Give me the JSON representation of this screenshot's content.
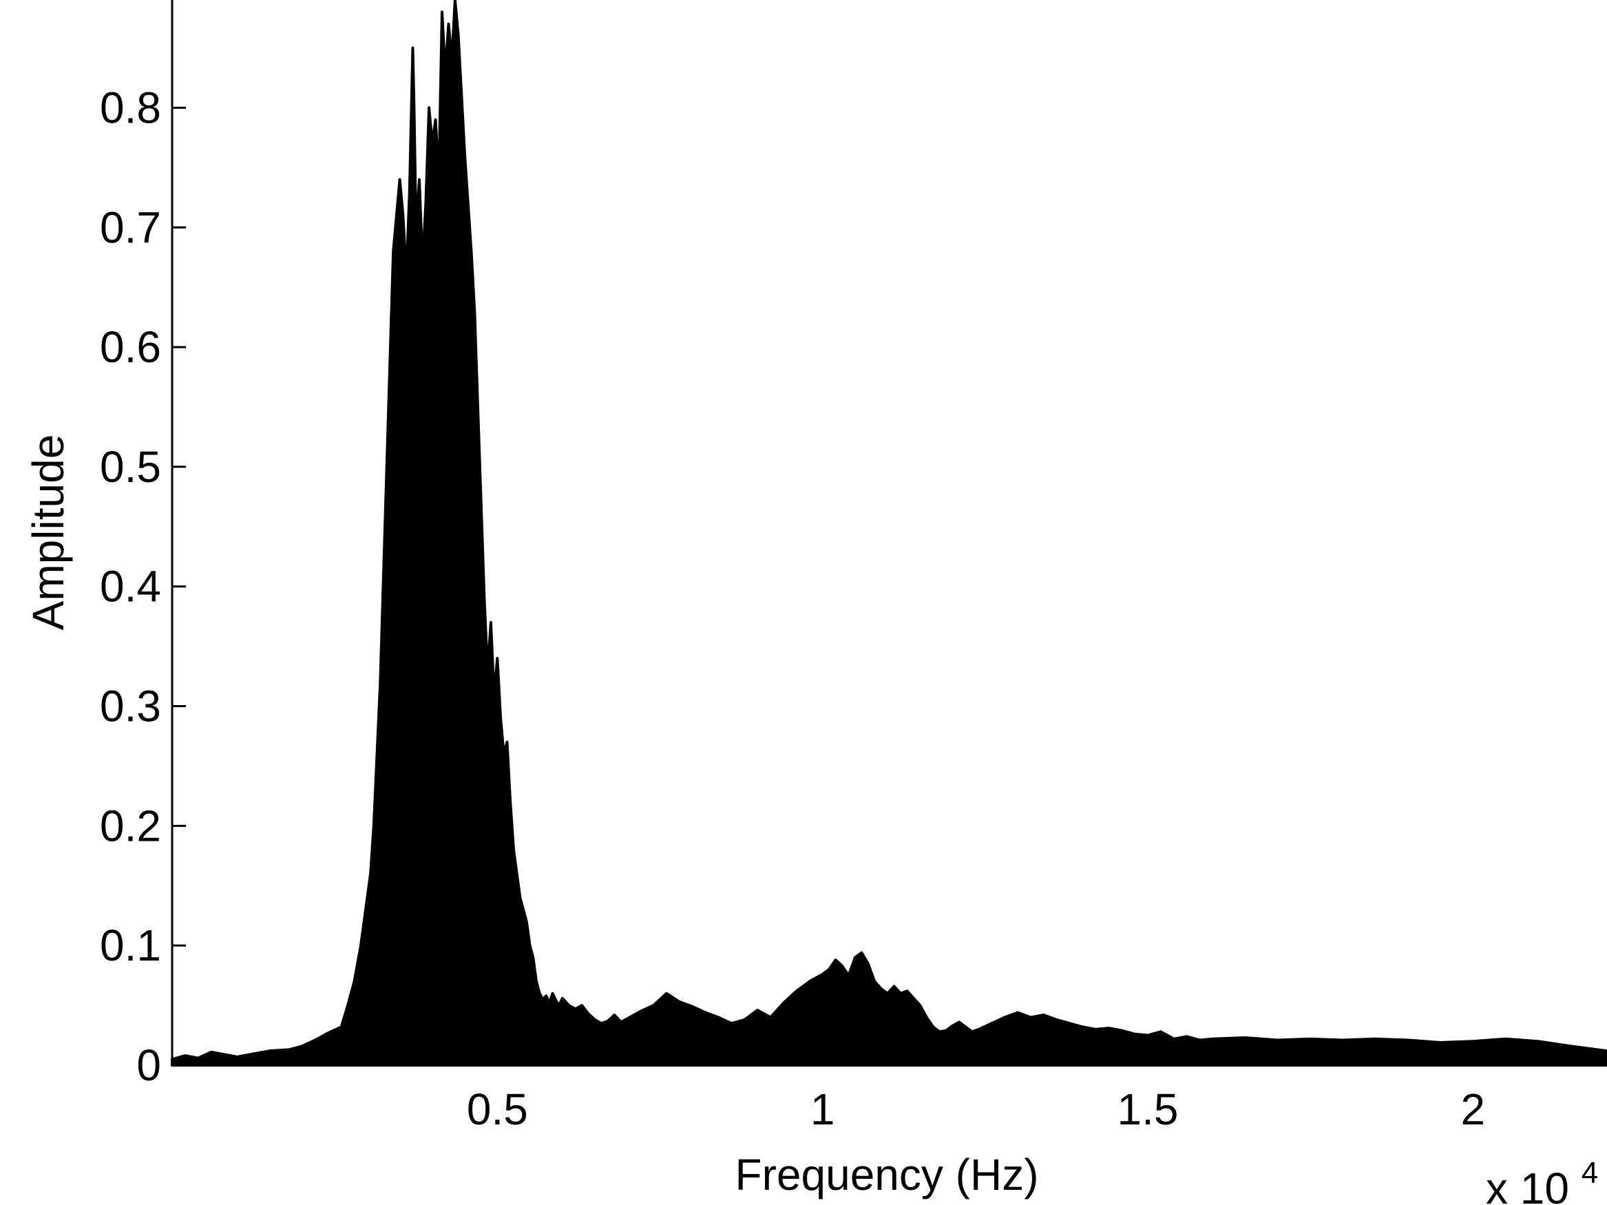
{
  "chart_data": {
    "type": "area",
    "xlabel": "Frequency (Hz)",
    "ylabel": "Amplitude",
    "x_multiplier_label": "x 10",
    "x_multiplier_exponent": "4",
    "xlim": [
      0,
      22050
    ],
    "ylim": [
      0,
      0.89
    ],
    "x_ticks": [
      {
        "value": 5000,
        "label": "0.5"
      },
      {
        "value": 10000,
        "label": "1"
      },
      {
        "value": 15000,
        "label": "1.5"
      },
      {
        "value": 20000,
        "label": "2"
      }
    ],
    "y_ticks": [
      {
        "value": 0,
        "label": "0"
      },
      {
        "value": 0.1,
        "label": "0.1"
      },
      {
        "value": 0.2,
        "label": "0.2"
      },
      {
        "value": 0.3,
        "label": "0.3"
      },
      {
        "value": 0.4,
        "label": "0.4"
      },
      {
        "value": 0.5,
        "label": "0.5"
      },
      {
        "value": 0.6,
        "label": "0.6"
      },
      {
        "value": 0.7,
        "label": "0.7"
      },
      {
        "value": 0.8,
        "label": "0.8"
      }
    ],
    "grid": false,
    "fill_color": "#000000",
    "series": [
      {
        "x": [
          0,
          200,
          400,
          600,
          800,
          1000,
          1200,
          1500,
          1800,
          2000,
          2200,
          2400,
          2600,
          2700,
          2800,
          2900,
          3000,
          3050,
          3100,
          3200,
          3300,
          3400,
          3500,
          3550,
          3600,
          3650,
          3700,
          3720,
          3750,
          3800,
          3850,
          3900,
          3950,
          4000,
          4050,
          4100,
          4150,
          4200,
          4250,
          4300,
          4350,
          4400,
          4450,
          4500,
          4550,
          4600,
          4650,
          4700,
          4750,
          4800,
          4850,
          4900,
          4950,
          5000,
          5050,
          5100,
          5150,
          5200,
          5250,
          5300,
          5350,
          5400,
          5450,
          5500,
          5550,
          5600,
          5650,
          5700,
          5750,
          5800,
          5850,
          5900,
          5950,
          6000,
          6100,
          6200,
          6300,
          6400,
          6500,
          6600,
          6700,
          6800,
          6900,
          7000,
          7200,
          7400,
          7600,
          7800,
          8000,
          8200,
          8400,
          8600,
          8800,
          9000,
          9200,
          9400,
          9600,
          9800,
          10000,
          10100,
          10200,
          10300,
          10400,
          10500,
          10600,
          10700,
          10800,
          10900,
          11000,
          11100,
          11200,
          11300,
          11400,
          11500,
          11600,
          11700,
          11800,
          11900,
          12000,
          12100,
          12200,
          12300,
          12400,
          12600,
          12800,
          13000,
          13200,
          13400,
          13600,
          13800,
          14000,
          14200,
          14400,
          14600,
          14800,
          15000,
          15200,
          15400,
          15600,
          15800,
          16000,
          16500,
          17000,
          17500,
          18000,
          18500,
          19000,
          19500,
          20000,
          20500,
          21000,
          21500,
          22050
        ],
        "y": [
          0.005,
          0.008,
          0.006,
          0.011,
          0.009,
          0.007,
          0.009,
          0.012,
          0.013,
          0.016,
          0.021,
          0.027,
          0.032,
          0.05,
          0.07,
          0.1,
          0.14,
          0.16,
          0.2,
          0.32,
          0.5,
          0.68,
          0.74,
          0.71,
          0.66,
          0.73,
          0.85,
          0.8,
          0.7,
          0.74,
          0.67,
          0.72,
          0.8,
          0.77,
          0.79,
          0.74,
          0.88,
          0.83,
          0.87,
          0.84,
          0.89,
          0.86,
          0.81,
          0.76,
          0.72,
          0.68,
          0.63,
          0.55,
          0.47,
          0.39,
          0.33,
          0.37,
          0.31,
          0.34,
          0.29,
          0.26,
          0.27,
          0.22,
          0.18,
          0.16,
          0.14,
          0.13,
          0.12,
          0.1,
          0.09,
          0.07,
          0.06,
          0.055,
          0.058,
          0.052,
          0.06,
          0.054,
          0.05,
          0.056,
          0.05,
          0.047,
          0.05,
          0.043,
          0.038,
          0.035,
          0.037,
          0.042,
          0.036,
          0.039,
          0.045,
          0.05,
          0.06,
          0.053,
          0.049,
          0.044,
          0.04,
          0.035,
          0.038,
          0.046,
          0.04,
          0.052,
          0.062,
          0.07,
          0.076,
          0.08,
          0.088,
          0.083,
          0.075,
          0.09,
          0.094,
          0.085,
          0.07,
          0.064,
          0.06,
          0.066,
          0.06,
          0.062,
          0.056,
          0.05,
          0.04,
          0.032,
          0.028,
          0.029,
          0.033,
          0.036,
          0.032,
          0.028,
          0.03,
          0.035,
          0.04,
          0.044,
          0.04,
          0.042,
          0.038,
          0.035,
          0.032,
          0.03,
          0.031,
          0.029,
          0.026,
          0.025,
          0.028,
          0.022,
          0.024,
          0.021,
          0.022,
          0.023,
          0.021,
          0.022,
          0.021,
          0.022,
          0.021,
          0.019,
          0.02,
          0.022,
          0.02,
          0.016,
          0.012
        ]
      }
    ]
  }
}
